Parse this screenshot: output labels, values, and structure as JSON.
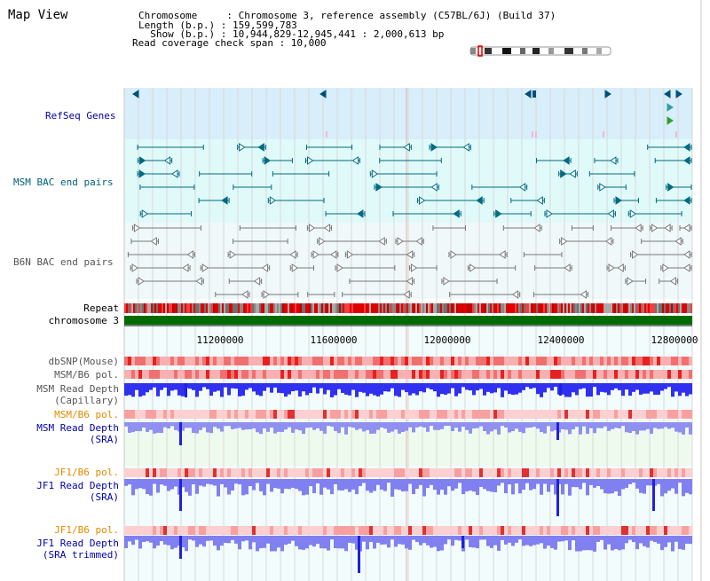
{
  "header": {
    "title": "Map View",
    "lines": [
      "Chromosome     : Chromosome 3, reference assembly (C57BL/6J) (Build 37)",
      "Length (b.p.) : 159,599,783",
      "  Show (b.p.) : 10,944,829-12,945,441 : 2,000,613 bp",
      "Read coverage check span : 10,000"
    ]
  },
  "tracks": {
    "refseq": "RefSeq Genes",
    "msm_bac": "MSM BAC end pairs",
    "b6n_bac": "B6N BAC end pairs",
    "repeat": "Repeat",
    "chromosome": "chromosome 3",
    "dbsnp": "dbSNP(Mouse)",
    "msm_b6_pol": "MSM/B6 pol.",
    "msm_depth_cap_1": "MSM Read Depth",
    "msm_depth_cap_2": "(Capillary)",
    "msm_b6_pol_sra": "MSM/B6 pol.",
    "msm_depth_sra_1": "MSM Read Depth",
    "msm_depth_sra_2": "(SRA)",
    "jf1_b6_pol_1": "JF1/B6 pol.",
    "jf1_depth_sra_1": "JF1 Read Depth",
    "jf1_depth_sra_2": "(SRA)",
    "jf1_b6_pol_2": "JF1/B6 pol.",
    "jf1_depth_trim_1": "JF1 Read Depth",
    "jf1_depth_trim_2": "(SRA trimmed)"
  },
  "axis": {
    "ticks": [
      "11200000",
      "11600000",
      "12000000",
      "12400000",
      "12800000"
    ]
  },
  "colors": {
    "refseq_bg": "#d8eefa",
    "msm_bg": "#e0fafa",
    "b6n_bg": "#f0f8fa",
    "chrom_green": "#006b00",
    "snp_red": "#e83a3a",
    "depth_blue": "#3030ff",
    "orange_label": "#e08a00",
    "blue_label": "#0000aa"
  }
}
